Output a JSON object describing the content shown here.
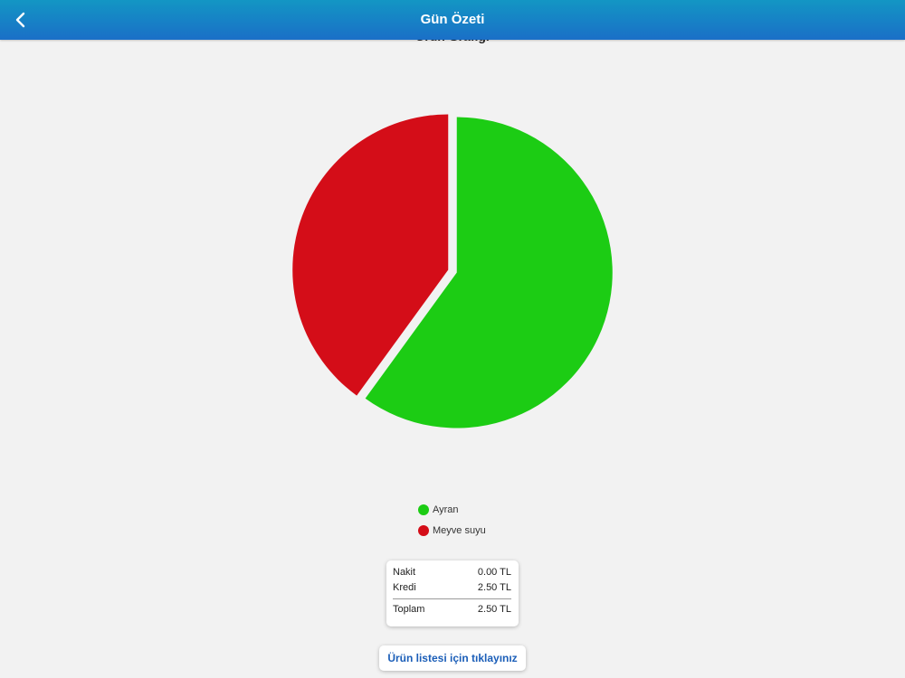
{
  "header": {
    "title": "Gün Özeti",
    "back_icon": "chevron-left-icon"
  },
  "chart_data": {
    "type": "pie",
    "title": "Ürün Grafiği",
    "categories": [
      "Ayran",
      "Meyve suyu"
    ],
    "values": [
      60,
      40
    ],
    "colors": [
      "#1ccc14",
      "#d40d18"
    ],
    "legend_position": "bottom"
  },
  "summary": {
    "rows": [
      {
        "label": "Nakit",
        "value": "0.00 TL"
      },
      {
        "label": "Kredi",
        "value": "2.50 TL"
      }
    ],
    "total": {
      "label": "Toplam",
      "value": "2.50 TL"
    }
  },
  "product_list_button": "Ürün listesi için tıklayınız"
}
